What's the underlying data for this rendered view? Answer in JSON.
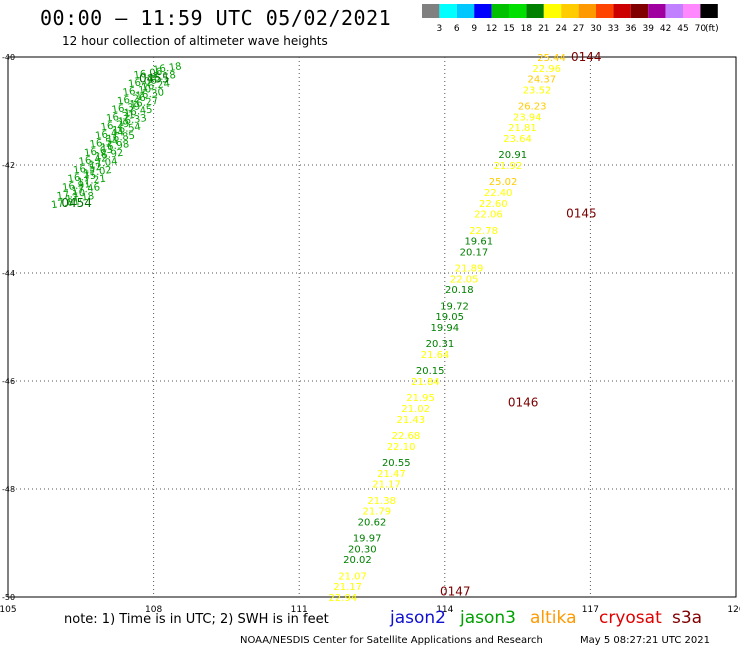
{
  "title": "00:00 – 11:59 UTC 05/02/2021",
  "subtitle": "12 hour collection of altimeter wave heights",
  "note": "note: 1) Time is in UTC; 2) SWH is in feet",
  "credit": "NOAA/NESDIS Center for Satellite Applications and Research",
  "timestamp": "May  5 08:27:21 UTC 2021",
  "missions": [
    {
      "name": "jason2",
      "color": "#1010d0"
    },
    {
      "name": "jason3",
      "color": "#00a000"
    },
    {
      "name": "altika",
      "color": "#ff9900"
    },
    {
      "name": "cryosat",
      "color": "#e00000"
    },
    {
      "name": "s3a",
      "color": "#800000"
    }
  ],
  "colorbar": {
    "unit": "(ft)",
    "labels": [
      "3",
      "6",
      "9",
      "12",
      "15",
      "18",
      "21",
      "24",
      "27",
      "30",
      "33",
      "36",
      "39",
      "42",
      "45",
      "70"
    ],
    "colors": [
      "#808080",
      "#00ffff",
      "#00c8ff",
      "#0000ff",
      "#00c000",
      "#00e000",
      "#008000",
      "#ffff00",
      "#ffcc00",
      "#ff9900",
      "#ff4400",
      "#cc0000",
      "#800000",
      "#a000a0",
      "#c080ff",
      "#ff88ff",
      "#000000"
    ]
  },
  "map": {
    "lon_range": [
      105,
      120
    ],
    "lat_range": [
      -50,
      -40
    ],
    "lon_ticks": [
      "105",
      "108",
      "111",
      "114",
      "117",
      "120"
    ],
    "lat_ticks": [
      "-40",
      "-42",
      "-44",
      "-46",
      "-48",
      "-50"
    ]
  },
  "chart_data": {
    "type": "scatter",
    "title": "00:00 – 11:59 UTC 05/02/2021",
    "xlabel": "",
    "ylabel": "",
    "xlim": [
      105,
      120
    ],
    "ylim": [
      -50,
      -40
    ],
    "pass_labels": [
      {
        "text": "0144",
        "lon": 116.6,
        "lat": -40.0
      },
      {
        "text": "0145",
        "lon": 116.5,
        "lat": -42.9
      },
      {
        "text": "0146",
        "lon": 115.3,
        "lat": -46.4
      },
      {
        "text": "0147",
        "lon": 113.9,
        "lat": -49.9
      },
      {
        "text": "0455",
        "lon": 107.7,
        "lat": -40.4
      },
      {
        "text": "0454",
        "lon": 106.1,
        "lat": -42.7
      }
    ],
    "track_points": [
      {
        "lon": 116.2,
        "lat": -40.0,
        "swh": "25.44",
        "color": "#ffcc00"
      },
      {
        "lon": 116.1,
        "lat": -40.2,
        "swh": "22.96",
        "color": "#ffff00"
      },
      {
        "lon": 116.0,
        "lat": -40.4,
        "swh": "24.37",
        "color": "#ffcc00"
      },
      {
        "lon": 115.9,
        "lat": -40.6,
        "swh": "23.52",
        "color": "#ffff00"
      },
      {
        "lon": 115.8,
        "lat": -40.9,
        "swh": "26.23",
        "color": "#ffcc00"
      },
      {
        "lon": 115.7,
        "lat": -41.1,
        "swh": "23.94",
        "color": "#ffff00"
      },
      {
        "lon": 115.6,
        "lat": -41.3,
        "swh": "21.81",
        "color": "#ffff00"
      },
      {
        "lon": 115.5,
        "lat": -41.5,
        "swh": "23.64",
        "color": "#ffff00"
      },
      {
        "lon": 115.4,
        "lat": -41.8,
        "swh": "20.91",
        "color": "#008000"
      },
      {
        "lon": 115.3,
        "lat": -42.0,
        "swh": "21.92",
        "color": "#ffff00"
      },
      {
        "lon": 115.2,
        "lat": -42.3,
        "swh": "25.02",
        "color": "#ffcc00"
      },
      {
        "lon": 115.1,
        "lat": -42.5,
        "swh": "22.40",
        "color": "#ffff00"
      },
      {
        "lon": 115.0,
        "lat": -42.7,
        "swh": "22.60",
        "color": "#ffff00"
      },
      {
        "lon": 114.9,
        "lat": -42.9,
        "swh": "22.06",
        "color": "#ffff00"
      },
      {
        "lon": 114.8,
        "lat": -43.2,
        "swh": "22.78",
        "color": "#ffff00"
      },
      {
        "lon": 114.7,
        "lat": -43.4,
        "swh": "19.61",
        "color": "#008000"
      },
      {
        "lon": 114.6,
        "lat": -43.6,
        "swh": "20.17",
        "color": "#008000"
      },
      {
        "lon": 114.5,
        "lat": -43.9,
        "swh": "21.89",
        "color": "#ffff00"
      },
      {
        "lon": 114.4,
        "lat": -44.1,
        "swh": "22.05",
        "color": "#ffff00"
      },
      {
        "lon": 114.3,
        "lat": -44.3,
        "swh": "20.18",
        "color": "#008000"
      },
      {
        "lon": 114.2,
        "lat": -44.6,
        "swh": "19.72",
        "color": "#008000"
      },
      {
        "lon": 114.1,
        "lat": -44.8,
        "swh": "19.05",
        "color": "#008000"
      },
      {
        "lon": 114.0,
        "lat": -45.0,
        "swh": "19.94",
        "color": "#008000"
      },
      {
        "lon": 113.9,
        "lat": -45.3,
        "swh": "20.31",
        "color": "#008000"
      },
      {
        "lon": 113.8,
        "lat": -45.5,
        "swh": "21.64",
        "color": "#ffff00"
      },
      {
        "lon": 113.7,
        "lat": -45.8,
        "swh": "20.15",
        "color": "#008000"
      },
      {
        "lon": 113.6,
        "lat": -46.0,
        "swh": "21.84",
        "color": "#ffff00"
      },
      {
        "lon": 113.5,
        "lat": -46.3,
        "swh": "21.95",
        "color": "#ffff00"
      },
      {
        "lon": 113.4,
        "lat": -46.5,
        "swh": "21.02",
        "color": "#ffff00"
      },
      {
        "lon": 113.3,
        "lat": -46.7,
        "swh": "21.43",
        "color": "#ffff00"
      },
      {
        "lon": 113.2,
        "lat": -47.0,
        "swh": "22.68",
        "color": "#ffff00"
      },
      {
        "lon": 113.1,
        "lat": -47.2,
        "swh": "22.10",
        "color": "#ffff00"
      },
      {
        "lon": 113.0,
        "lat": -47.5,
        "swh": "20.55",
        "color": "#008000"
      },
      {
        "lon": 112.9,
        "lat": -47.7,
        "swh": "21.47",
        "color": "#ffff00"
      },
      {
        "lon": 112.8,
        "lat": -47.9,
        "swh": "21.17",
        "color": "#ffff00"
      },
      {
        "lon": 112.7,
        "lat": -48.2,
        "swh": "21.38",
        "color": "#ffff00"
      },
      {
        "lon": 112.6,
        "lat": -48.4,
        "swh": "21.79",
        "color": "#ffff00"
      },
      {
        "lon": 112.5,
        "lat": -48.6,
        "swh": "20.62",
        "color": "#008000"
      },
      {
        "lon": 112.4,
        "lat": -48.9,
        "swh": "19.97",
        "color": "#008000"
      },
      {
        "lon": 112.3,
        "lat": -49.1,
        "swh": "20.30",
        "color": "#008000"
      },
      {
        "lon": 112.2,
        "lat": -49.3,
        "swh": "20.02",
        "color": "#008000"
      },
      {
        "lon": 112.1,
        "lat": -49.6,
        "swh": "21.07",
        "color": "#ffff00"
      },
      {
        "lon": 112.0,
        "lat": -49.8,
        "swh": "21.17",
        "color": "#ffff00"
      },
      {
        "lon": 111.9,
        "lat": -50.0,
        "swh": "22.94",
        "color": "#ffff00"
      }
    ],
    "dense_tracks": [
      {
        "color": "#00a000",
        "start": [
          106.2,
          -42.7
        ],
        "end": [
          108.0,
          -40.3
        ],
        "count": 16,
        "labels": [
          "17.18",
          "17.46",
          "17.21",
          "17.02",
          "17.04",
          "16.92",
          "16.98",
          "16.85",
          "16.54",
          "16.33",
          "16.45",
          "16.27",
          "16.30",
          "16.24",
          "16.18",
          "16.18"
        ]
      },
      {
        "color": "#00a000",
        "start": [
          105.9,
          -42.8
        ],
        "end": [
          107.6,
          -40.4
        ],
        "count": 16,
        "labels": [
          "17.01",
          "17.10",
          "16.91",
          "16.75",
          "16.52",
          "16.42",
          "16.63",
          "16.54",
          "16.44",
          "16.29",
          "16.31",
          "16.39",
          "16.26",
          "16.10",
          "16.06",
          "16.06"
        ]
      }
    ]
  }
}
